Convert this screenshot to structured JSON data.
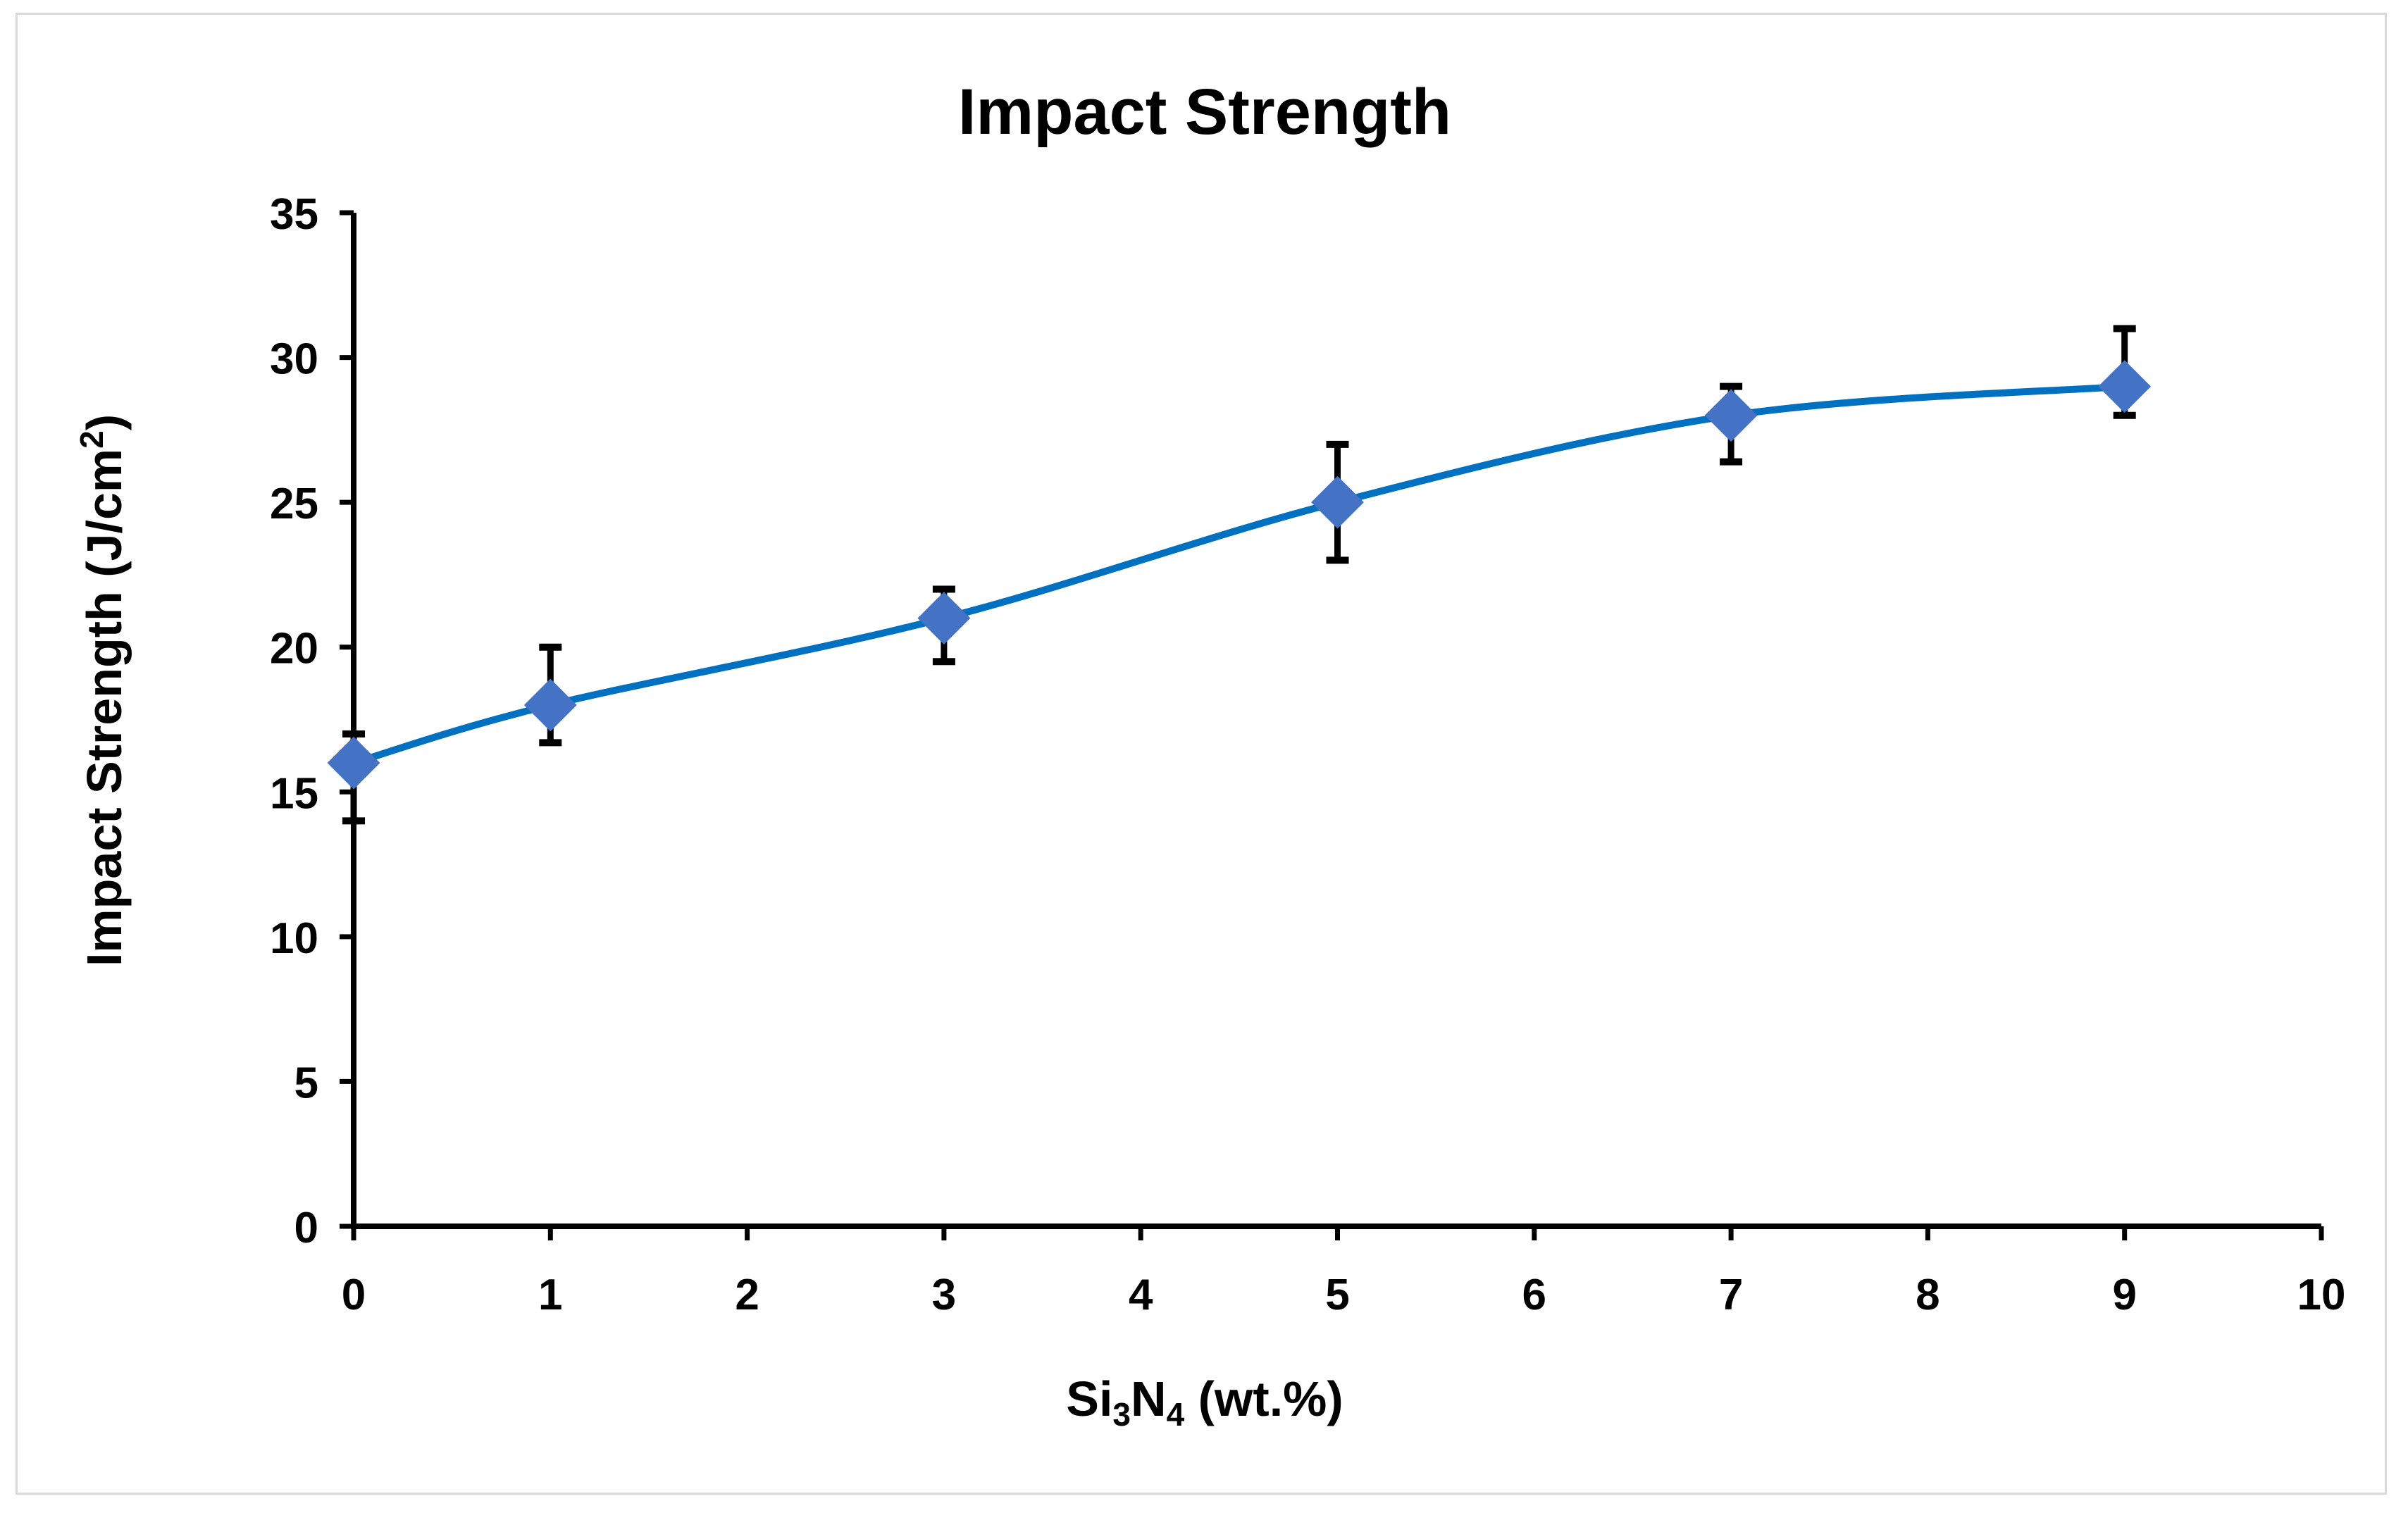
{
  "chart_data": {
    "type": "line",
    "title": "Impact Strength",
    "xlabel": {
      "base": "Si",
      "sub1": "3",
      "mid": "N",
      "sub2": "4",
      "tail": " (wt.%)"
    },
    "ylabel": {
      "main": "Impact Strength (J/cm",
      "sup": "2",
      "tail": ")"
    },
    "xlim": [
      0,
      10
    ],
    "ylim": [
      0,
      35
    ],
    "x_ticks": [
      0,
      1,
      2,
      3,
      4,
      5,
      6,
      7,
      8,
      9,
      10
    ],
    "y_ticks": [
      0,
      5,
      10,
      15,
      20,
      25,
      30,
      35
    ],
    "grid": false,
    "legend": "none",
    "smoothed": true,
    "series": [
      {
        "name": "Impact Strength",
        "color": "#0070c0",
        "marker": "diamond",
        "marker_color": "#4472c4",
        "x": [
          0,
          1,
          3,
          5,
          7,
          9
        ],
        "values": [
          16,
          18,
          21,
          25,
          28,
          29
        ],
        "error_upper": [
          1,
          2,
          1,
          2,
          1,
          2
        ],
        "error_lower": [
          2,
          1.3,
          1.5,
          2,
          1.6,
          1
        ]
      }
    ]
  }
}
